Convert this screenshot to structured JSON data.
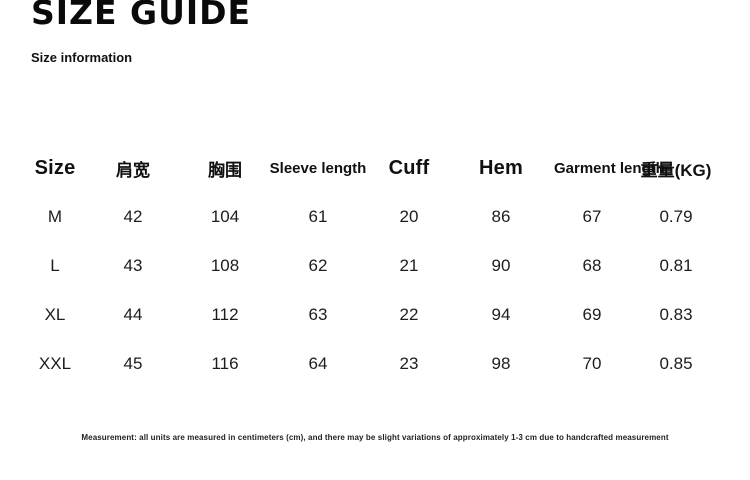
{
  "page": {
    "title": "SIZE GUIDE",
    "subtitle": "Size information",
    "footnote": "Measurement: all units are measured in centimeters (cm), and there may be slight variations of approximately 1-3 cm due to handcrafted measurement",
    "background_color": "#ffffff",
    "text_color": "#111111"
  },
  "table": {
    "columns": [
      "Size",
      "肩宽",
      "胸围",
      "Sleeve length",
      "Cuff",
      "Hem",
      "Garment length",
      "重量(KG)"
    ],
    "rows": [
      {
        "size": "M",
        "values": [
          "42",
          "104",
          "61",
          "20",
          "86",
          "67",
          "0.79"
        ]
      },
      {
        "size": "L",
        "values": [
          "43",
          "108",
          "62",
          "21",
          "90",
          "68",
          "0.81"
        ]
      },
      {
        "size": "XL",
        "values": [
          "44",
          "112",
          "63",
          "22",
          "94",
          "69",
          "0.83"
        ]
      },
      {
        "size": "XXL",
        "values": [
          "45",
          "116",
          "64",
          "23",
          "98",
          "70",
          "0.85"
        ]
      }
    ]
  }
}
